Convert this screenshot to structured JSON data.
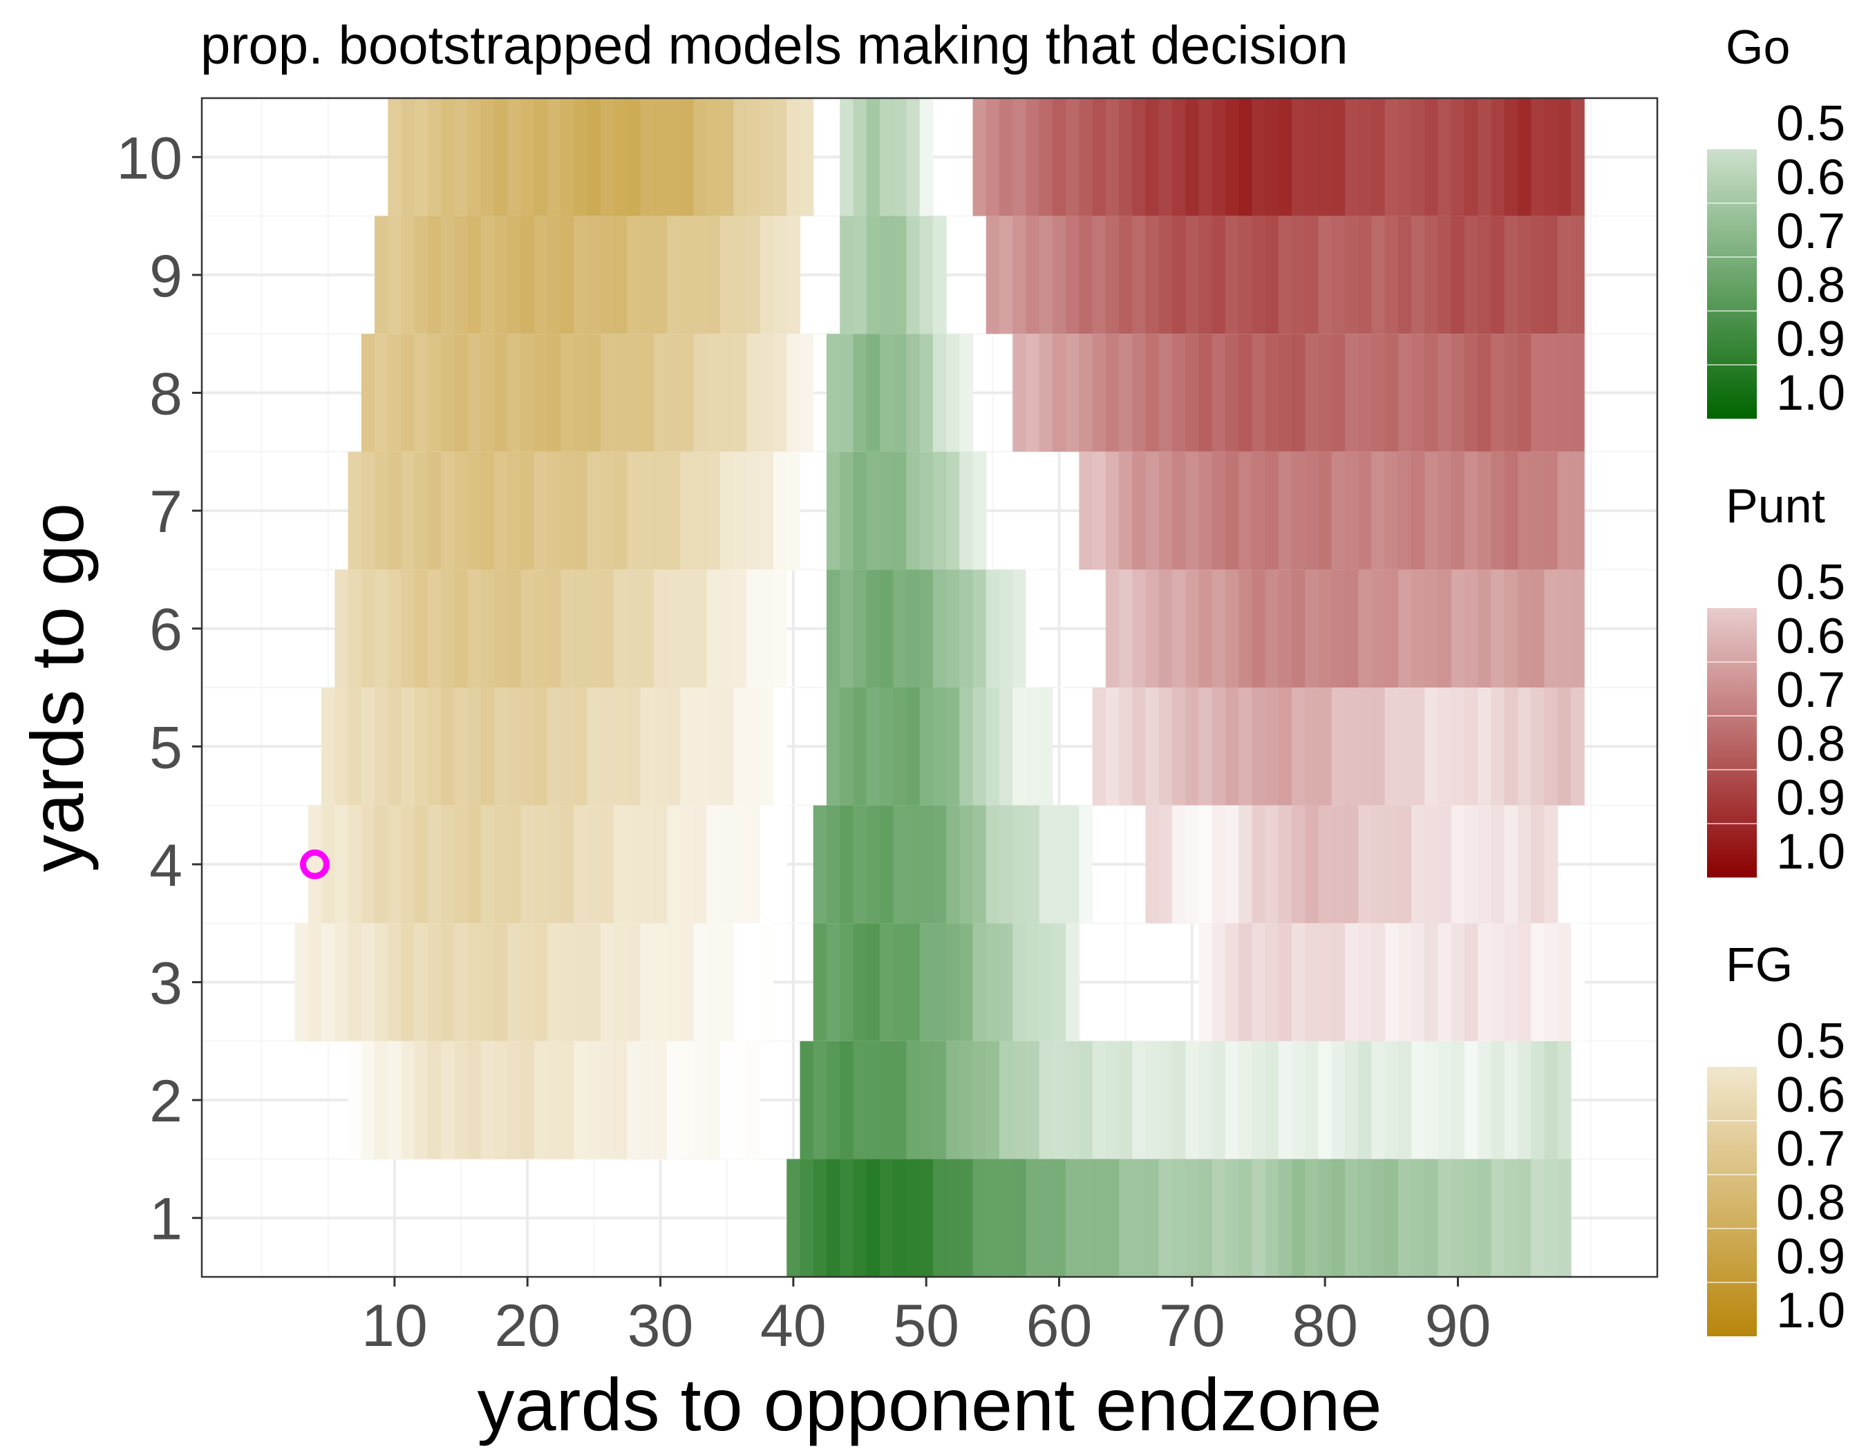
{
  "chart_data": {
    "type": "heatmap",
    "title": "prop. bootstrapped models making that decision",
    "xlabel": "yards to opponent endzone",
    "ylabel": "yards to go",
    "xlim": [
      -4.5,
      105
    ],
    "ylim": [
      0.5,
      10.5
    ],
    "x_ticks": [
      10,
      20,
      30,
      40,
      50,
      60,
      70,
      80,
      90
    ],
    "y_ticks": [
      1,
      2,
      3,
      4,
      5,
      6,
      7,
      8,
      9,
      10
    ],
    "grid": true,
    "legend_position": "right",
    "legends": [
      {
        "title": "Go",
        "decision": "go",
        "breaks": [
          "0.5",
          "0.6",
          "0.7",
          "0.8",
          "0.9",
          "1.0"
        ],
        "low_color": "#ffffff",
        "high_color": "#006400"
      },
      {
        "title": "Punt",
        "decision": "punt",
        "breaks": [
          "0.5",
          "0.6",
          "0.7",
          "0.8",
          "0.9",
          "1.0"
        ],
        "low_color": "#ffffff",
        "high_color": "#8b0000"
      },
      {
        "title": "FG",
        "decision": "fg",
        "breaks": [
          "0.5",
          "0.6",
          "0.7",
          "0.8",
          "0.9",
          "1.0"
        ],
        "low_color": "#ffffff",
        "high_color": "#b8860b"
      }
    ],
    "series": [
      {
        "decision": "fg",
        "segments": [
          {
            "ytg": 10,
            "from": 10,
            "to": 41,
            "values": [
              0.7,
              0.74,
              0.78,
              0.8,
              0.81,
              0.83,
              0.84,
              0.83,
              0.8,
              0.74,
              0.68,
              0.62
            ]
          },
          {
            "ytg": 9,
            "from": 9,
            "to": 40,
            "values": [
              0.72,
              0.75,
              0.78,
              0.79,
              0.8,
              0.8,
              0.78,
              0.76,
              0.73,
              0.7,
              0.66,
              0.6
            ]
          },
          {
            "ytg": 8,
            "from": 8,
            "to": 41,
            "values": [
              0.72,
              0.74,
              0.76,
              0.77,
              0.78,
              0.78,
              0.76,
              0.73,
              0.7,
              0.66,
              0.61,
              0.55
            ]
          },
          {
            "ytg": 7,
            "from": 7,
            "to": 40,
            "values": [
              0.7,
              0.72,
              0.74,
              0.75,
              0.75,
              0.74,
              0.72,
              0.7,
              0.67,
              0.63,
              0.58,
              0.53
            ]
          },
          {
            "ytg": 6,
            "from": 6,
            "to": 39,
            "values": [
              0.64,
              0.68,
              0.71,
              0.73,
              0.73,
              0.72,
              0.7,
              0.67,
              0.64,
              0.6,
              0.56,
              0.52
            ]
          },
          {
            "ytg": 5,
            "from": 5,
            "to": 39,
            "values": [
              0.61,
              0.64,
              0.67,
              0.69,
              0.7,
              0.69,
              0.67,
              0.64,
              0.61,
              0.58,
              0.55,
              0.51
            ]
          },
          {
            "ytg": 4,
            "from": 4,
            "to": 39,
            "values": [
              0.58,
              0.62,
              0.66,
              0.68,
              0.68,
              0.67,
              0.65,
              0.62,
              0.59,
              0.56,
              0.53,
              0.5
            ]
          },
          {
            "ytg": 3,
            "from": 3,
            "to": 38,
            "values": [
              0.55,
              0.58,
              0.62,
              0.65,
              0.66,
              0.65,
              0.63,
              0.6,
              0.58,
              0.55,
              0.52,
              0.5
            ]
          },
          {
            "ytg": 2,
            "from": 7,
            "to": 37,
            "values": [
              0.52,
              0.56,
              0.6,
              0.62,
              0.62,
              0.61,
              0.59,
              0.57,
              0.55,
              0.53,
              0.51,
              0.5
            ]
          }
        ]
      },
      {
        "decision": "go",
        "segments": [
          {
            "ytg": 10,
            "from": 44,
            "to": 50,
            "values": [
              0.6,
              0.66,
              0.63,
              0.55
            ]
          },
          {
            "ytg": 9,
            "from": 44,
            "to": 51,
            "values": [
              0.64,
              0.7,
              0.66,
              0.56
            ]
          },
          {
            "ytg": 8,
            "from": 43,
            "to": 53,
            "values": [
              0.66,
              0.74,
              0.72,
              0.62,
              0.53
            ]
          },
          {
            "ytg": 7,
            "from": 43,
            "to": 54,
            "values": [
              0.7,
              0.74,
              0.72,
              0.64,
              0.55
            ]
          },
          {
            "ytg": 6,
            "from": 43,
            "to": 58,
            "values": [
              0.74,
              0.77,
              0.76,
              0.7,
              0.6,
              0.52
            ]
          },
          {
            "ytg": 5,
            "from": 43,
            "to": 59,
            "values": [
              0.76,
              0.78,
              0.77,
              0.7,
              0.56,
              0.53
            ]
          },
          {
            "ytg": 4,
            "from": 42,
            "to": 62,
            "values": [
              0.78,
              0.8,
              0.79,
              0.74,
              0.64,
              0.58,
              0.54
            ]
          },
          {
            "ytg": 3,
            "from": 42,
            "to": 61,
            "values": [
              0.8,
              0.82,
              0.8,
              0.76,
              0.68,
              0.62,
              0.56
            ]
          },
          {
            "ytg": 2,
            "from": 41,
            "to": 98,
            "values": [
              0.82,
              0.84,
              0.8,
              0.74,
              0.66,
              0.6,
              0.58,
              0.56,
              0.55,
              0.55,
              0.54,
              0.56,
              0.55,
              0.53,
              0.56,
              0.6
            ]
          },
          {
            "ytg": 1,
            "from": 40,
            "to": 98,
            "values": [
              0.86,
              0.9,
              0.92,
              0.86,
              0.8,
              0.76,
              0.72,
              0.68,
              0.66,
              0.66,
              0.7,
              0.7,
              0.68,
              0.66,
              0.64,
              0.62
            ]
          }
        ]
      },
      {
        "decision": "punt",
        "segments": [
          {
            "ytg": 10,
            "from": 54,
            "to": 99,
            "values": [
              0.72,
              0.78,
              0.82,
              0.86,
              0.9,
              0.92,
              0.9,
              0.86,
              0.84,
              0.86,
              0.9,
              0.88
            ]
          },
          {
            "ytg": 9,
            "from": 55,
            "to": 99,
            "values": [
              0.68,
              0.74,
              0.78,
              0.82,
              0.84,
              0.84,
              0.82,
              0.8,
              0.82,
              0.84,
              0.84,
              0.82
            ]
          },
          {
            "ytg": 8,
            "from": 57,
            "to": 99,
            "values": [
              0.64,
              0.7,
              0.74,
              0.78,
              0.8,
              0.82,
              0.8,
              0.78,
              0.78,
              0.8,
              0.8,
              0.76
            ]
          },
          {
            "ytg": 7,
            "from": 62,
            "to": 99,
            "values": [
              0.62,
              0.7,
              0.74,
              0.76,
              0.76,
              0.74,
              0.74,
              0.74,
              0.76,
              0.72
            ]
          },
          {
            "ytg": 6,
            "from": 64,
            "to": 99,
            "values": [
              0.62,
              0.66,
              0.7,
              0.74,
              0.74,
              0.72,
              0.7,
              0.68,
              0.7,
              0.66
            ]
          },
          {
            "ytg": 5,
            "from": 63,
            "to": 99,
            "values": [
              0.56,
              0.6,
              0.64,
              0.68,
              0.66,
              0.62,
              0.58,
              0.56,
              0.6,
              0.62
            ]
          },
          {
            "ytg": 4,
            "from": 67,
            "to": 97,
            "values": [
              0.58,
              0.5,
              0.6,
              0.64,
              0.6,
              0.56,
              0.54,
              0.58
            ]
          },
          {
            "ytg": 3,
            "from": 71,
            "to": 99,
            "values": [
              0.54,
              0.58,
              0.58,
              0.55,
              0.54,
              0.56,
              0.54,
              0.52
            ]
          }
        ]
      }
    ],
    "annotations": [
      {
        "type": "point",
        "shape": "open-circle",
        "x": 4,
        "y": 4,
        "color": "#ff00ff"
      }
    ]
  }
}
